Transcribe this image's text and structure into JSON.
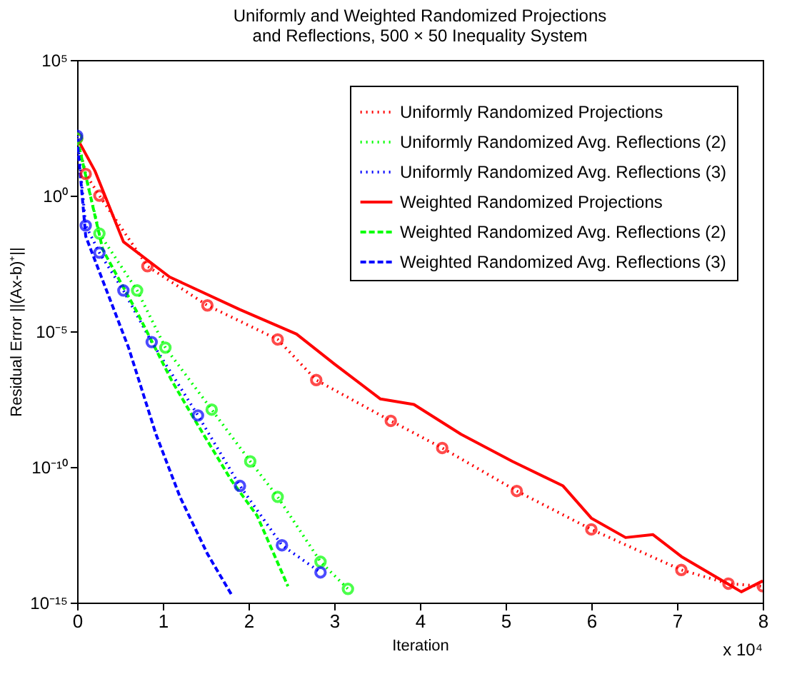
{
  "chart_data": {
    "type": "line",
    "title": "Uniformly and Weighted Randomized Projections and Reflections, 500 × 50 Inequality System",
    "xlabel": "Iteration",
    "ylabel": "Residual Error ||(Ax-b)⁺||",
    "annotations": [
      "x 10⁴"
    ],
    "log": "y",
    "grid": false,
    "legend": "top right",
    "xlim": [
      0,
      8
    ],
    "xticks": [
      0,
      1,
      2,
      3,
      4,
      5,
      6,
      7,
      8
    ],
    "ylim": [
      1e-15,
      100000.0
    ],
    "yticks": [
      {
        "value": 1e-15,
        "label": "10⁻¹⁵"
      },
      {
        "value": 1e-10,
        "label": "10⁻¹⁰"
      },
      {
        "value": 1e-05,
        "label": "10⁻⁵"
      },
      {
        "value": 1,
        "label": "10⁰"
      },
      {
        "value": 100000.0,
        "label": "10⁵"
      }
    ],
    "series": [
      {
        "name": "Uniformly Randomized Projections",
        "color": "#ff0000",
        "marker": "circle",
        "line_style": "dotted",
        "x": [
          0,
          0.1,
          0.26,
          0.82,
          1.52,
          2.34,
          2.79,
          3.66,
          4.26,
          5.13,
          6.0,
          7.05,
          7.6,
          8.0
        ],
        "values": [
          130.0,
          6.3,
          1,
          0.0025,
          9e-05,
          5e-06,
          1.6e-07,
          5e-09,
          5e-10,
          1.3e-11,
          5e-13,
          1.6e-14,
          5e-15,
          4e-15
        ]
      },
      {
        "name": "Uniformly Randomized Avg. Reflections (2)",
        "color": "#00ff00",
        "marker": "circle",
        "line_style": "dotted",
        "x": [
          0,
          0.26,
          0.7,
          1.03,
          1.57,
          2.02,
          2.34,
          2.84,
          3.16
        ],
        "values": [
          130.0,
          0.04,
          0.00032,
          2.5e-06,
          1.3e-08,
          1.6e-10,
          7.9e-12,
          3.2e-14,
          3.2e-15
        ]
      },
      {
        "name": "Uniformly Randomized Avg. Reflections (3)",
        "color": "#0000ff",
        "marker": "circle",
        "line_style": "dotted",
        "x": [
          0,
          0.1,
          0.26,
          0.54,
          0.87,
          1.41,
          1.9,
          2.39,
          2.84
        ],
        "values": [
          160.0,
          0.079,
          0.0079,
          0.00032,
          4e-06,
          7.9e-09,
          2e-11,
          1.3e-13,
          1.3e-14
        ]
      },
      {
        "name": "Weighted Randomized Projections",
        "color": "#ff0000",
        "marker": "none",
        "line_style": "solid",
        "x": [
          0,
          0.21,
          0.54,
          1.08,
          1.9,
          2.56,
          3.0,
          3.54,
          3.93,
          4.48,
          5.08,
          5.67,
          6.0,
          6.4,
          6.72,
          7.05,
          7.75,
          8.0
        ],
        "values": [
          130.0,
          7.9,
          0.02,
          0.001,
          6.3e-05,
          7.9e-06,
          6.3e-07,
          3.2e-08,
          2e-08,
          1.6e-09,
          1.6e-10,
          2e-11,
          1.3e-12,
          2.5e-13,
          3.2e-13,
          5e-14,
          2.5e-15,
          6.3e-15
        ]
      },
      {
        "name": "Weighted Randomized Avg. Reflections (2)",
        "color": "#00ff00",
        "marker": "none",
        "line_style": "dashed",
        "x": [
          0,
          0.3,
          0.7,
          1.1,
          1.36,
          1.8,
          2.1,
          2.46
        ],
        "values": [
          130.0,
          0.01,
          5e-05,
          1.6e-07,
          6.3e-09,
          3.2e-11,
          1.6e-12,
          4e-15
        ]
      },
      {
        "name": "Weighted Randomized Avg. Reflections (3)",
        "color": "#0000ff",
        "marker": "none",
        "line_style": "dashed",
        "x": [
          0,
          0.1,
          0.38,
          0.6,
          0.92,
          1.2,
          1.52,
          1.8
        ],
        "values": [
          130.0,
          0.032,
          0.00016,
          2.5e-06,
          1.6e-09,
          7.9e-12,
          6.3e-14,
          2e-15
        ]
      }
    ]
  }
}
